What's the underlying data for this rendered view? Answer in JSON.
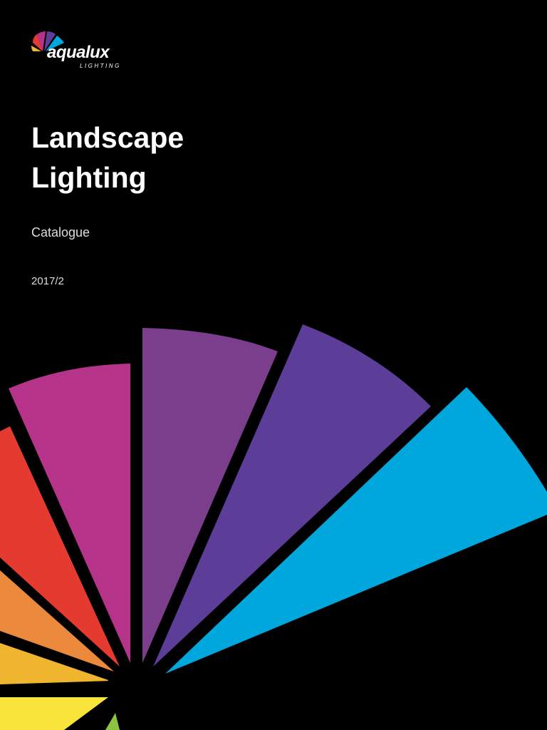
{
  "logo": {
    "name": "aqualux",
    "tagline": "LIGHTING"
  },
  "title": {
    "line1": "Landscape",
    "line2": "Lighting"
  },
  "subtitle": "Catalogue",
  "edition": "2017/2"
}
